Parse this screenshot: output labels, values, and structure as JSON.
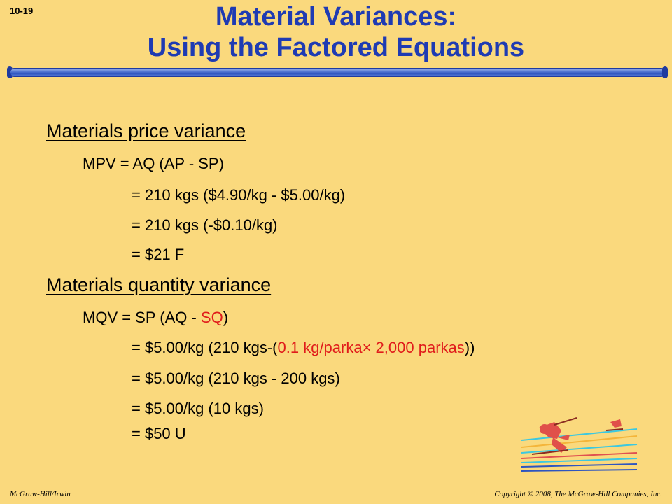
{
  "slide_number": "10-19",
  "title": {
    "line1": "Material Variances:",
    "line2": "Using the Factored Equations"
  },
  "price_section": {
    "heading": "Materials price variance",
    "lines": [
      "MPV = AQ (AP - SP)",
      "= 210 kgs ($4.90/kg - $5.00/kg)",
      "= 210 kgs (-$0.10/kg)",
      "= $21 F"
    ]
  },
  "quantity_section": {
    "heading": "Materials quantity variance",
    "mqv_prefix": "MQV = SP (AQ - ",
    "mqv_sq": "SQ",
    "mqv_suffix": ")",
    "line2_prefix": "= $5.00/kg (210 kgs-(",
    "line2_red": "0.1 kg/parka× 2,000 parkas",
    "line2_suffix": "))",
    "lines": [
      "= $5.00/kg (210 kgs - 200 kgs)",
      "= $5.00/kg (10 kgs)",
      "= $50 U"
    ]
  },
  "footer": {
    "left": "McGraw-Hill/Irwin",
    "right": "Copyright © 2008, The McGraw-Hill Companies, Inc."
  },
  "colors": {
    "background": "#FAD97D",
    "title": "#1F3BB3",
    "highlight": "#E01B1B"
  }
}
